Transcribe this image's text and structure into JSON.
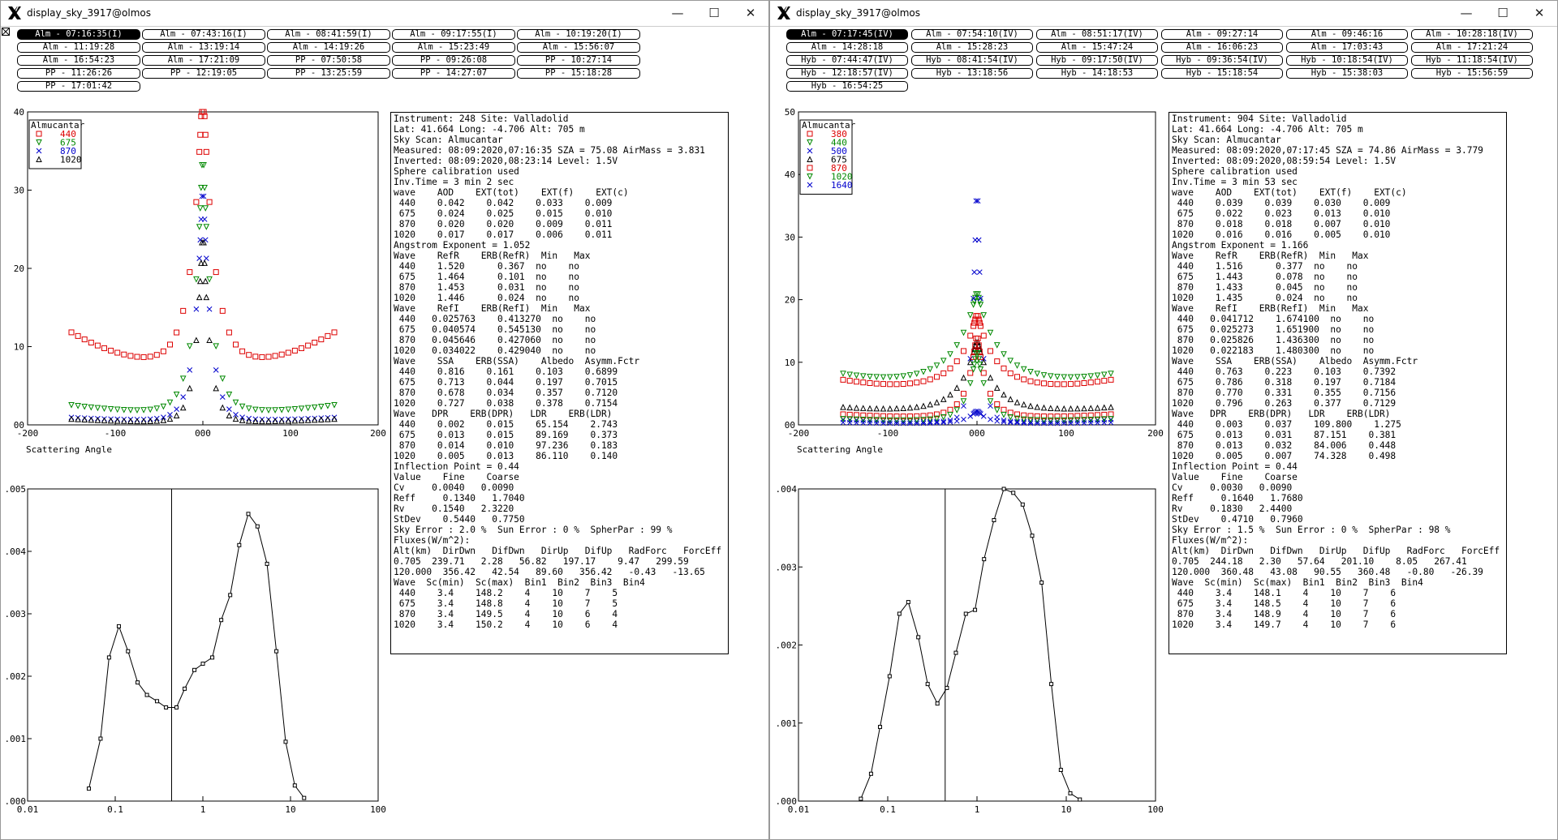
{
  "windows": [
    {
      "title": "display_sky_3917@olmos",
      "controls": {
        "minimize": "—",
        "maximize": "☐",
        "close": "✕"
      },
      "tabs": [
        [
          "Alm - 07:16:35(I)",
          "Alm - 07:43:16(I)",
          "Alm - 08:41:59(I)",
          "Alm - 09:17:55(I)",
          "Alm - 10:19:20(I)"
        ],
        [
          "Alm - 11:19:28",
          "Alm - 13:19:14",
          "Alm - 14:19:26",
          "Alm - 15:23:49",
          "Alm - 15:56:07"
        ],
        [
          "Alm - 16:54:23",
          "Alm - 17:21:09",
          "PP - 07:50:58",
          "PP - 09:26:08",
          "PP - 10:27:14"
        ],
        [
          "PP - 11:26:26",
          "PP - 12:19:05",
          "PP - 13:25:59",
          "PP - 14:27:07",
          "PP - 15:18:28"
        ],
        [
          "PP - 17:01:42"
        ]
      ],
      "selected_tab": "Alm - 07:16:35(I)",
      "colors": {
        "440": "#dd0000",
        "675": "#008800",
        "870": "#0000cc",
        "1020": "#000000"
      },
      "scatter": {
        "legend_title": "Almucantar",
        "legend": [
          "440",
          "675",
          "870",
          "1020"
        ],
        "xlabel": "Scattering Angle",
        "x_ticks": [
          "-200",
          "-100",
          "000",
          "100",
          "200"
        ],
        "y_ticks": [
          "40",
          "30",
          "20",
          "10",
          "00"
        ]
      },
      "dist": {
        "x_ticks": [
          "0.01",
          "0.1",
          "1",
          "10",
          "100"
        ],
        "y_ticks": [
          ".005",
          ".004",
          ".003",
          ".002",
          ".001",
          ".000"
        ]
      },
      "info_lines": [
        "Instrument: 248 Site: Valladolid",
        "Lat: 41.664 Long: -4.706 Alt: 705 m",
        "Sky Scan: Almucantar",
        "Measured: 08:09:2020,07:16:35 SZA = 75.08 AirMass = 3.831",
        "Inverted: 08:09:2020,08:23:14 Level: 1.5V",
        "Sphere calibration used",
        "Inv.Time = 3 min 2 sec",
        "wave    AOD    EXT(tot)    EXT(f)    EXT(c)",
        " 440    0.042    0.042    0.033    0.009",
        " 675    0.024    0.025    0.015    0.010",
        " 870    0.020    0.020    0.009    0.011",
        "1020    0.017    0.017    0.006    0.011",
        "Angstrom Exponent = 1.052",
        "Wave    RefR    ERB(RefR)  Min   Max",
        " 440    1.520      0.367  no    no",
        " 675    1.464      0.101  no    no",
        " 870    1.453      0.031  no    no",
        "1020    1.446      0.024  no    no",
        "Wave    RefI    ERB(RefI)  Min   Max",
        " 440   0.025763    0.413270  no    no",
        " 675   0.040574    0.545130  no    no",
        " 870   0.045646    0.427060  no    no",
        "1020   0.034022    0.429040  no    no",
        "Wave    SSA    ERB(SSA)    Albedo  Asymm.Fctr",
        " 440    0.816    0.161    0.103    0.6899",
        " 675    0.713    0.044    0.197    0.7015",
        " 870    0.678    0.034    0.357    0.7120",
        "1020    0.727    0.038    0.378    0.7154",
        "Wave   DPR    ERB(DPR)   LDR    ERB(LDR)",
        " 440    0.002    0.015    65.154    2.743",
        " 675    0.013    0.015    89.169    0.373",
        " 870    0.014    0.010    97.236    0.183",
        "1020    0.005    0.013    86.110    0.140",
        "Inflection Point = 0.44",
        "Value    Fine    Coarse",
        "Cv     0.0040   0.0090",
        "Reff     0.1340   1.7040",
        "Rv     0.1540   2.3220",
        "StDev    0.5440   0.7750",
        "Sky Error : 2.0 %  Sun Error : 0 %  SpherPar : 99 %",
        "Fluxes(W/m^2):",
        "Alt(km)  DirDwn   DifDwn   DirUp   DifUp   RadForc   ForcEff",
        "0.705  239.71   2.28   56.82   197.17    9.47   299.59",
        "120.000  356.42   42.54   89.60   356.42   -0.43   -13.65",
        "Wave  Sc(min)  Sc(max)  Bin1  Bin2  Bin3  Bin4",
        " 440    3.4    148.2    4    10    7    5",
        " 675    3.4    148.8    4    10    7    5",
        " 870    3.4    149.5    4    10    6    4",
        "1020    3.4    150.2    4    10    6    4"
      ]
    },
    {
      "title": "display_sky_3917@olmos",
      "controls": {
        "minimize": "—",
        "maximize": "☐",
        "close": "✕"
      },
      "tabs": [
        [
          "Alm - 07:17:45(IV)",
          "Alm - 07:54:10(IV)",
          "Alm - 08:51:17(IV)",
          "Alm - 09:27:14",
          "Alm - 09:46:16",
          "Alm - 10:28:18(IV)"
        ],
        [
          "Alm - 14:28:18",
          "Alm - 15:28:23",
          "Alm - 15:47:24",
          "Alm - 16:06:23",
          "Alm - 17:03:43",
          "Alm - 17:21:24"
        ],
        [
          "Hyb - 07:44:47(IV)",
          "Hyb - 08:41:54(IV)",
          "Hyb - 09:17:50(IV)",
          "Hyb - 09:36:54(IV)",
          "Hyb - 10:18:54(IV)",
          "Hyb - 11:18:54(IV)"
        ],
        [
          "Hyb - 12:18:57(IV)",
          "Hyb - 13:18:56",
          "Hyb - 14:18:53",
          "Hyb - 15:18:54",
          "Hyb - 15:38:03",
          "Hyb - 15:56:59"
        ],
        [
          "Hyb - 16:54:25"
        ]
      ],
      "selected_tab": "Alm - 07:17:45(IV)",
      "colors": {
        "380": "#dd0000",
        "440": "#008800",
        "500": "#0000cc",
        "675": "#000000",
        "870": "#dd0000",
        "1020": "#008800",
        "1640": "#0000cc"
      },
      "scatter": {
        "legend_title": "Almucantar",
        "legend": [
          "380",
          "440",
          "500",
          "675",
          "870",
          "1020",
          "1640"
        ],
        "xlabel": "Scattering Angle",
        "x_ticks": [
          "-200",
          "-100",
          "000",
          "100",
          "200"
        ],
        "y_ticks": [
          "50",
          "40",
          "30",
          "20",
          "10",
          "00"
        ]
      },
      "dist": {
        "x_ticks": [
          "0.01",
          "0.1",
          "1",
          "10",
          "100"
        ],
        "y_ticks": [
          ".004",
          ".003",
          ".002",
          ".001",
          ".000"
        ]
      },
      "info_lines": [
        "Instrument: 904 Site: Valladolid",
        "Lat: 41.664 Long: -4.706 Alt: 705 m",
        "Sky Scan: Almucantar",
        "Measured: 08:09:2020,07:17:45 SZA = 74.86 AirMass = 3.779",
        "Inverted: 08:09:2020,08:59:54 Level: 1.5V",
        "Sphere calibration used",
        "Inv.Time = 3 min 53 sec",
        "wave    AOD    EXT(tot)    EXT(f)    EXT(c)",
        " 440    0.039    0.039    0.030    0.009",
        " 675    0.022    0.023    0.013    0.010",
        " 870    0.018    0.018    0.007    0.010",
        "1020    0.016    0.016    0.005    0.010",
        "Angstrom Exponent = 1.166",
        "Wave    RefR    ERB(RefR)  Min   Max",
        " 440    1.516      0.377  no    no",
        " 675    1.443      0.078  no    no",
        " 870    1.433      0.045  no    no",
        "1020    1.435      0.024  no    no",
        "Wave    RefI    ERB(RefI)  Min   Max",
        " 440   0.041712    1.674100  no    no",
        " 675   0.025273    1.651900  no    no",
        " 870   0.025826    1.436300  no    no",
        "1020   0.022183    1.480300  no    no",
        "Wave    SSA    ERB(SSA)    Albedo  Asymm.Fctr",
        " 440    0.763    0.223    0.103    0.7392",
        " 675    0.786    0.318    0.197    0.7184",
        " 870    0.770    0.331    0.355    0.7156",
        "1020    0.796    0.263    0.377    0.7129",
        "Wave   DPR    ERB(DPR)   LDR    ERB(LDR)",
        " 440    0.003    0.037    109.800    1.275",
        " 675    0.013    0.031    87.151    0.381",
        " 870    0.013    0.032    84.006    0.448",
        "1020    0.005    0.007    74.328    0.498",
        "Inflection Point = 0.44",
        "Value    Fine    Coarse",
        "Cv     0.0030   0.0090",
        "Reff     0.1640   1.7680",
        "Rv     0.1830   2.4400",
        "StDev    0.4710   0.7960",
        "Sky Error : 1.5 %  Sun Error : 0 %  SpherPar : 98 %",
        "Fluxes(W/m^2):",
        "Alt(km)  DirDwn   DifDwn   DirUp   DifUp   RadForc   ForcEff",
        "0.705  244.18   2.30   57.64   201.10    8.05   267.41",
        "120.000  360.48   43.08   90.55   360.48   -0.80   -26.39",
        "Wave  Sc(min)  Sc(max)  Bin1  Bin2  Bin3  Bin4",
        " 440    3.4    148.1    4    10    7    6",
        " 675    3.4    148.5    4    10    7    6",
        " 870    3.4    148.9    4    10    7    6",
        "1020    3.4    149.7    4    10    7    6"
      ]
    }
  ],
  "chart_data": [
    {
      "type": "scatter",
      "xlabel": "Scattering Angle",
      "legend_title": "Almucantar",
      "xlim": [
        -200,
        200
      ],
      "ylim": [
        0,
        40
      ],
      "series_params": [
        {
          "name": "440",
          "peak": 38,
          "tail": 4.8,
          "w": 12,
          "base": 6.8,
          "rise": 0.00022
        },
        {
          "name": "675",
          "peak": 35,
          "tail": 2.2,
          "w": 10,
          "base": 1.4,
          "rise": 5e-05
        },
        {
          "name": "870",
          "peak": 32,
          "tail": 1.2,
          "w": 9,
          "base": 0.5,
          "rise": 2e-05
        },
        {
          "name": "1020",
          "peak": 26,
          "tail": 1.0,
          "w": 8,
          "base": 0.3,
          "rise": 2e-05
        }
      ]
    },
    {
      "type": "line",
      "xscale": "log",
      "xlim": [
        0.01,
        100
      ],
      "ylim": [
        0,
        0.005
      ],
      "x": [
        0.05,
        0.068,
        0.085,
        0.11,
        0.14,
        0.18,
        0.23,
        0.3,
        0.38,
        0.5,
        0.62,
        0.8,
        1.0,
        1.28,
        1.62,
        2.05,
        2.6,
        3.3,
        4.2,
        5.4,
        6.9,
        8.8,
        11.2,
        14.3
      ],
      "y": [
        0.0002,
        0.001,
        0.0023,
        0.0028,
        0.0024,
        0.0019,
        0.0017,
        0.0016,
        0.0015,
        0.0015,
        0.0018,
        0.0021,
        0.0022,
        0.0023,
        0.0029,
        0.0033,
        0.0041,
        0.0046,
        0.0044,
        0.0038,
        0.0024,
        0.00095,
        0.00025,
        5e-05
      ],
      "vline": 0.44
    },
    {
      "type": "scatter",
      "xlabel": "Scattering Angle",
      "legend_title": "Almucantar",
      "xlim": [
        -200,
        200
      ],
      "ylim": [
        0,
        50
      ],
      "series_params": [
        {
          "name": "380",
          "peak": 13,
          "tail": 6.5,
          "w": 14,
          "base": 5.0,
          "rise": 9e-05
        },
        {
          "name": "440",
          "peak": 16,
          "tail": 7.0,
          "w": 18,
          "base": 5.5,
          "rise": 0.0001
        },
        {
          "name": "500",
          "peak": 43,
          "tail": 1.5,
          "w": 5,
          "base": 0.4,
          "rise": 2e-05
        },
        {
          "name": "675",
          "peak": 12,
          "tail": 3.0,
          "w": 16,
          "base": 1.8,
          "rise": 4e-05
        },
        {
          "name": "870",
          "peak": 14,
          "tail": 2.2,
          "w": 10,
          "base": 1.0,
          "rise": 3e-05
        },
        {
          "name": "1020",
          "peak": 12,
          "tail": 1.6,
          "w": 10,
          "base": 0.5,
          "rise": 2e-05
        },
        {
          "name": "1640",
          "peak": 2.2,
          "tail": 0.6,
          "w": 10,
          "base": 0.15,
          "rise": 1e-05
        }
      ]
    },
    {
      "type": "line",
      "xscale": "log",
      "xlim": [
        0.01,
        100
      ],
      "ylim": [
        0,
        0.004
      ],
      "x": [
        0.05,
        0.065,
        0.082,
        0.105,
        0.135,
        0.17,
        0.22,
        0.28,
        0.36,
        0.46,
        0.58,
        0.75,
        0.95,
        1.2,
        1.55,
        2.0,
        2.55,
        3.25,
        4.15,
        5.3,
        6.8,
        8.7,
        11.1,
        14.2
      ],
      "y": [
        3e-05,
        0.00035,
        0.00095,
        0.0016,
        0.0024,
        0.00255,
        0.0021,
        0.0015,
        0.00125,
        0.00145,
        0.0019,
        0.0024,
        0.00245,
        0.0031,
        0.0036,
        0.004,
        0.00395,
        0.0038,
        0.0034,
        0.0028,
        0.0015,
        0.0004,
        0.0001,
        2e-05
      ],
      "vline": 0.44
    }
  ]
}
